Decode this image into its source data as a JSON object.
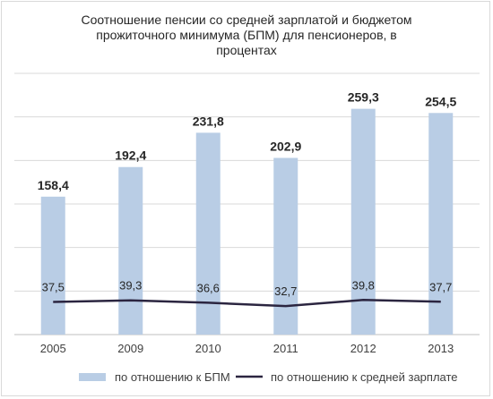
{
  "chart_data": {
    "type": "bar",
    "title_lines": [
      "Соотношение пенсии со средней зарплатой и бюджетом",
      "прожиточного минимума (БПМ) для пенсионеров, в",
      "процентах"
    ],
    "categories": [
      "2005",
      "2009",
      "2010",
      "2011",
      "2012",
      "2013"
    ],
    "series": [
      {
        "name": "по отношению к БПМ",
        "type": "bar",
        "color": "#b9cde5",
        "values": [
          158.4,
          192.4,
          231.8,
          202.9,
          259.3,
          254.5
        ],
        "labels": [
          "158,4",
          "192,4",
          "231,8",
          "202,9",
          "259,3",
          "254,5"
        ]
      },
      {
        "name": "по отношению к средней зарплате",
        "type": "line",
        "color": "#2b2540",
        "values": [
          37.5,
          39.3,
          36.6,
          32.7,
          39.8,
          37.7
        ],
        "labels": [
          "37,5",
          "39,3",
          "36,6",
          "32,7",
          "39,8",
          "37,7"
        ]
      }
    ],
    "ylim": [
      0,
      300
    ],
    "grid": true,
    "legend_position": "bottom"
  }
}
